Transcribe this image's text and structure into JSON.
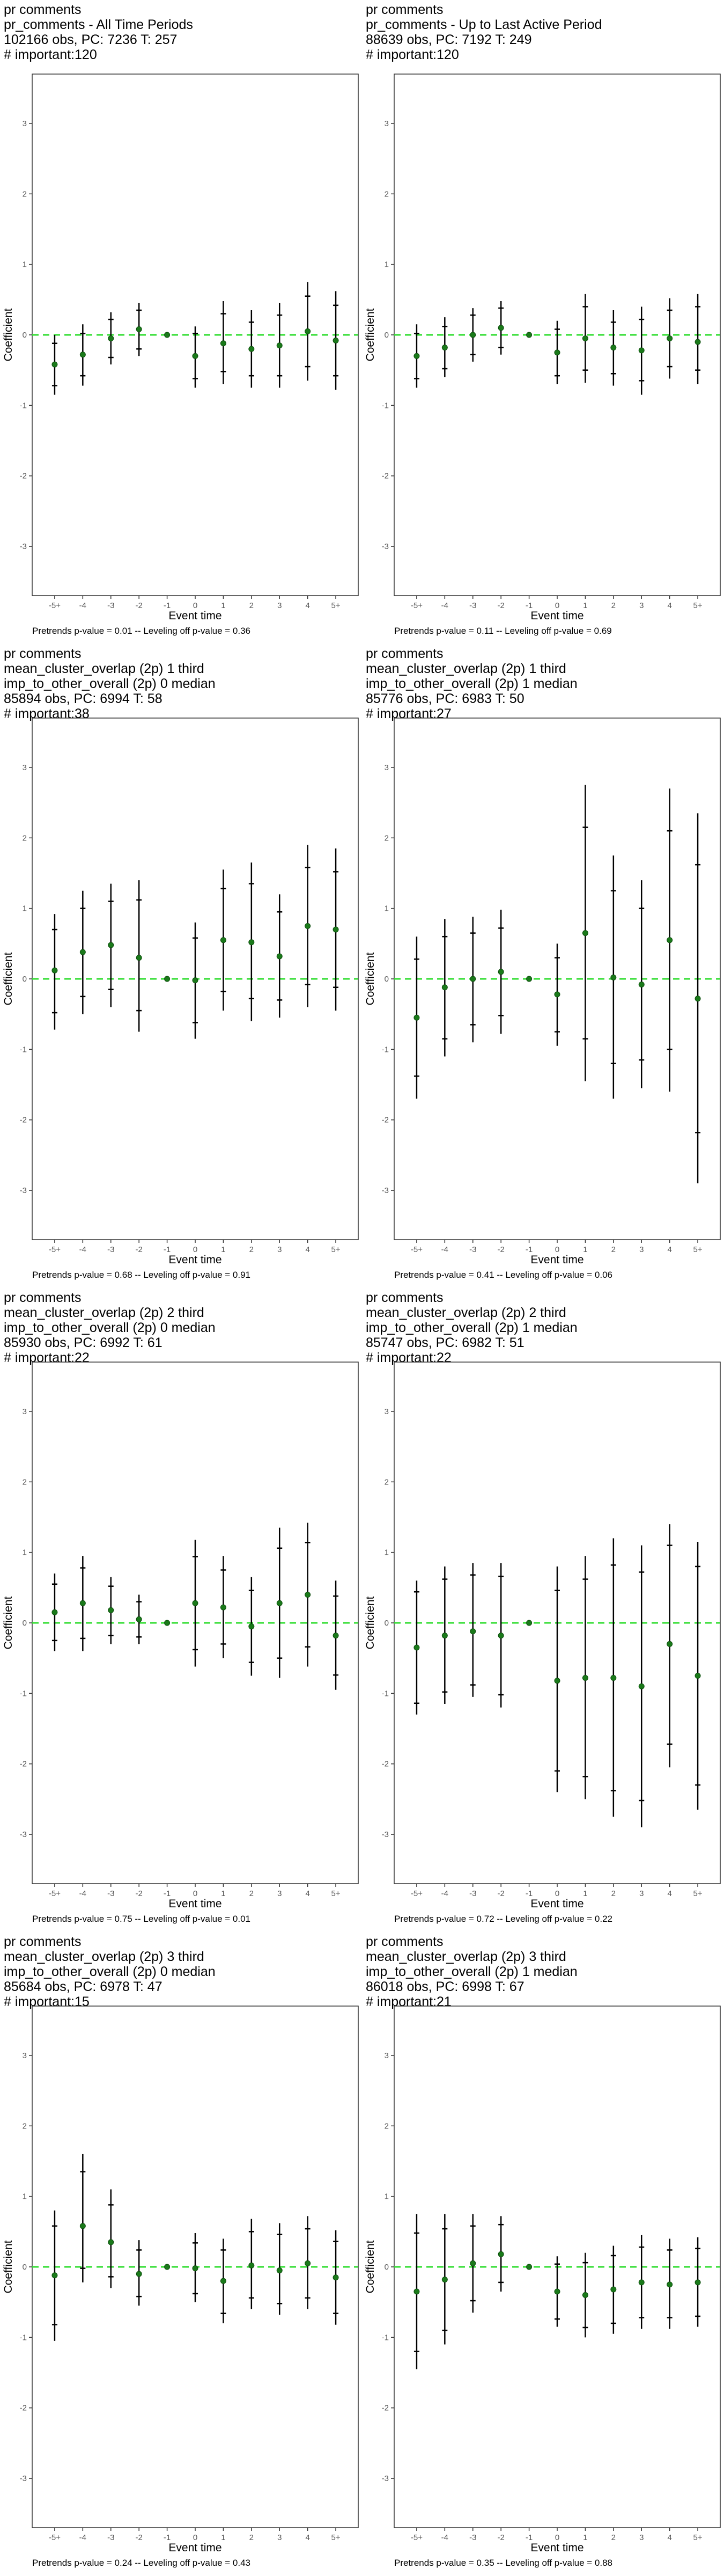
{
  "colors": {
    "zero_line": "#33dd33",
    "point": "#1a7a1a",
    "bar": "#000000",
    "frame": "#333333"
  },
  "chart_data": [
    {
      "type": "scatter",
      "title_lines": [
        "pr comments",
        "pr_comments - All Time Periods",
        "102166 obs, PC: 7236 T: 257",
        "# important:120"
      ],
      "footer": "Pretrends p-value = 0.01 -- Leveling off p-value = 0.36",
      "xlabel": "Event time",
      "ylabel": "Coefficient",
      "categories": [
        "-5+",
        "-4",
        "-3",
        "-2",
        "-1",
        "0",
        "1",
        "2",
        "3",
        "4",
        "5+"
      ],
      "yticks": [
        -3,
        -2,
        -1,
        0,
        1,
        2,
        3
      ],
      "ylim": [
        -3.7,
        3.7
      ],
      "points": [
        {
          "y": -0.42,
          "lo": -0.85,
          "hi": 0.0,
          "in_lo": -0.72,
          "in_hi": -0.12
        },
        {
          "y": -0.28,
          "lo": -0.72,
          "hi": 0.15,
          "in_lo": -0.58,
          "in_hi": 0.02
        },
        {
          "y": -0.05,
          "lo": -0.42,
          "hi": 0.32,
          "in_lo": -0.32,
          "in_hi": 0.22
        },
        {
          "y": 0.08,
          "lo": -0.3,
          "hi": 0.45,
          "in_lo": -0.2,
          "in_hi": 0.35
        },
        {
          "y": 0.0,
          "lo": 0.0,
          "hi": 0.0,
          "in_lo": 0.0,
          "in_hi": 0.0
        },
        {
          "y": -0.3,
          "lo": -0.75,
          "hi": 0.12,
          "in_lo": -0.62,
          "in_hi": 0.02
        },
        {
          "y": -0.12,
          "lo": -0.7,
          "hi": 0.48,
          "in_lo": -0.52,
          "in_hi": 0.3
        },
        {
          "y": -0.2,
          "lo": -0.75,
          "hi": 0.35,
          "in_lo": -0.58,
          "in_hi": 0.18
        },
        {
          "y": -0.15,
          "lo": -0.75,
          "hi": 0.45,
          "in_lo": -0.58,
          "in_hi": 0.28
        },
        {
          "y": 0.05,
          "lo": -0.65,
          "hi": 0.75,
          "in_lo": -0.45,
          "in_hi": 0.55
        },
        {
          "y": -0.08,
          "lo": -0.78,
          "hi": 0.62,
          "in_lo": -0.58,
          "in_hi": 0.42
        }
      ]
    },
    {
      "type": "scatter",
      "title_lines": [
        "pr comments",
        "pr_comments - Up to Last Active Period",
        "88639 obs, PC: 7192 T: 249",
        "# important:120"
      ],
      "footer": "Pretrends p-value = 0.11 -- Leveling off p-value = 0.69",
      "xlabel": "Event time",
      "ylabel": "Coefficient",
      "categories": [
        "-5+",
        "-4",
        "-3",
        "-2",
        "-1",
        "0",
        "1",
        "2",
        "3",
        "4",
        "5+"
      ],
      "yticks": [
        -3,
        -2,
        -1,
        0,
        1,
        2,
        3
      ],
      "ylim": [
        -3.7,
        3.7
      ],
      "points": [
        {
          "y": -0.3,
          "lo": -0.75,
          "hi": 0.15,
          "in_lo": -0.62,
          "in_hi": 0.02
        },
        {
          "y": -0.18,
          "lo": -0.6,
          "hi": 0.25,
          "in_lo": -0.48,
          "in_hi": 0.12
        },
        {
          "y": 0.0,
          "lo": -0.38,
          "hi": 0.38,
          "in_lo": -0.28,
          "in_hi": 0.28
        },
        {
          "y": 0.1,
          "lo": -0.28,
          "hi": 0.48,
          "in_lo": -0.18,
          "in_hi": 0.38
        },
        {
          "y": 0.0,
          "lo": 0.0,
          "hi": 0.0,
          "in_lo": 0.0,
          "in_hi": 0.0
        },
        {
          "y": -0.25,
          "lo": -0.7,
          "hi": 0.2,
          "in_lo": -0.58,
          "in_hi": 0.08
        },
        {
          "y": -0.05,
          "lo": -0.68,
          "hi": 0.58,
          "in_lo": -0.5,
          "in_hi": 0.4
        },
        {
          "y": -0.18,
          "lo": -0.72,
          "hi": 0.35,
          "in_lo": -0.55,
          "in_hi": 0.18
        },
        {
          "y": -0.22,
          "lo": -0.85,
          "hi": 0.4,
          "in_lo": -0.65,
          "in_hi": 0.22
        },
        {
          "y": -0.05,
          "lo": -0.62,
          "hi": 0.52,
          "in_lo": -0.45,
          "in_hi": 0.35
        },
        {
          "y": -0.1,
          "lo": -0.7,
          "hi": 0.58,
          "in_lo": -0.5,
          "in_hi": 0.4
        }
      ]
    },
    {
      "type": "scatter",
      "title_lines": [
        "pr comments",
        "mean_cluster_overlap (2p) 1 third",
        "imp_to_other_overall (2p) 0 median",
        "85894 obs, PC: 6994 T: 58",
        "# important:38"
      ],
      "footer": "Pretrends p-value = 0.68 -- Leveling off p-value = 0.91",
      "xlabel": "Event time",
      "ylabel": "Coefficient",
      "categories": [
        "-5+",
        "-4",
        "-3",
        "-2",
        "-1",
        "0",
        "1",
        "2",
        "3",
        "4",
        "5+"
      ],
      "yticks": [
        -3,
        -2,
        -1,
        0,
        1,
        2,
        3
      ],
      "ylim": [
        -3.7,
        3.7
      ],
      "points": [
        {
          "y": 0.12,
          "lo": -0.72,
          "hi": 0.92,
          "in_lo": -0.48,
          "in_hi": 0.7
        },
        {
          "y": 0.38,
          "lo": -0.5,
          "hi": 1.25,
          "in_lo": -0.25,
          "in_hi": 1.0
        },
        {
          "y": 0.48,
          "lo": -0.4,
          "hi": 1.35,
          "in_lo": -0.15,
          "in_hi": 1.1
        },
        {
          "y": 0.3,
          "lo": -0.75,
          "hi": 1.4,
          "in_lo": -0.45,
          "in_hi": 1.12
        },
        {
          "y": 0.0,
          "lo": 0.0,
          "hi": 0.0,
          "in_lo": 0.0,
          "in_hi": 0.0
        },
        {
          "y": -0.02,
          "lo": -0.85,
          "hi": 0.8,
          "in_lo": -0.62,
          "in_hi": 0.58
        },
        {
          "y": 0.55,
          "lo": -0.45,
          "hi": 1.55,
          "in_lo": -0.18,
          "in_hi": 1.28
        },
        {
          "y": 0.52,
          "lo": -0.6,
          "hi": 1.65,
          "in_lo": -0.28,
          "in_hi": 1.35
        },
        {
          "y": 0.32,
          "lo": -0.55,
          "hi": 1.2,
          "in_lo": -0.3,
          "in_hi": 0.95
        },
        {
          "y": 0.75,
          "lo": -0.4,
          "hi": 1.9,
          "in_lo": -0.08,
          "in_hi": 1.58
        },
        {
          "y": 0.7,
          "lo": -0.45,
          "hi": 1.85,
          "in_lo": -0.12,
          "in_hi": 1.52
        }
      ]
    },
    {
      "type": "scatter",
      "title_lines": [
        "pr comments",
        "mean_cluster_overlap (2p) 1 third",
        "imp_to_other_overall (2p) 1 median",
        "85776 obs, PC: 6983 T: 50",
        "# important:27"
      ],
      "footer": "Pretrends p-value = 0.41 -- Leveling off p-value = 0.06",
      "xlabel": "Event time",
      "ylabel": "Coefficient",
      "categories": [
        "-5+",
        "-4",
        "-3",
        "-2",
        "-1",
        "0",
        "1",
        "2",
        "3",
        "4",
        "5+"
      ],
      "yticks": [
        -3,
        -2,
        -1,
        0,
        1,
        2,
        3
      ],
      "ylim": [
        -3.7,
        3.7
      ],
      "points": [
        {
          "y": -0.55,
          "lo": -1.7,
          "hi": 0.6,
          "in_lo": -1.38,
          "in_hi": 0.28
        },
        {
          "y": -0.12,
          "lo": -1.1,
          "hi": 0.85,
          "in_lo": -0.85,
          "in_hi": 0.6
        },
        {
          "y": 0.0,
          "lo": -0.9,
          "hi": 0.88,
          "in_lo": -0.65,
          "in_hi": 0.65
        },
        {
          "y": 0.1,
          "lo": -0.78,
          "hi": 0.98,
          "in_lo": -0.52,
          "in_hi": 0.72
        },
        {
          "y": 0.0,
          "lo": 0.0,
          "hi": 0.0,
          "in_lo": 0.0,
          "in_hi": 0.0
        },
        {
          "y": -0.22,
          "lo": -0.95,
          "hi": 0.5,
          "in_lo": -0.75,
          "in_hi": 0.3
        },
        {
          "y": 0.65,
          "lo": -1.45,
          "hi": 2.75,
          "in_lo": -0.85,
          "in_hi": 2.15
        },
        {
          "y": 0.02,
          "lo": -1.7,
          "hi": 1.75,
          "in_lo": -1.2,
          "in_hi": 1.25
        },
        {
          "y": -0.08,
          "lo": -1.55,
          "hi": 1.4,
          "in_lo": -1.15,
          "in_hi": 1.0
        },
        {
          "y": 0.55,
          "lo": -1.6,
          "hi": 2.7,
          "in_lo": -1.0,
          "in_hi": 2.1
        },
        {
          "y": -0.28,
          "lo": -2.9,
          "hi": 2.35,
          "in_lo": -2.18,
          "in_hi": 1.62
        }
      ]
    },
    {
      "type": "scatter",
      "title_lines": [
        "pr comments",
        "mean_cluster_overlap (2p) 2 third",
        "imp_to_other_overall (2p) 0 median",
        "85930 obs, PC: 6992 T: 61",
        "# important:22"
      ],
      "footer": "Pretrends p-value = 0.75 -- Leveling off p-value = 0.01",
      "xlabel": "Event time",
      "ylabel": "Coefficient",
      "categories": [
        "-5+",
        "-4",
        "-3",
        "-2",
        "-1",
        "0",
        "1",
        "2",
        "3",
        "4",
        "5+"
      ],
      "yticks": [
        -3,
        -2,
        -1,
        0,
        1,
        2,
        3
      ],
      "ylim": [
        -3.7,
        3.7
      ],
      "points": [
        {
          "y": 0.15,
          "lo": -0.4,
          "hi": 0.7,
          "in_lo": -0.25,
          "in_hi": 0.55
        },
        {
          "y": 0.28,
          "lo": -0.4,
          "hi": 0.95,
          "in_lo": -0.22,
          "in_hi": 0.78
        },
        {
          "y": 0.18,
          "lo": -0.3,
          "hi": 0.65,
          "in_lo": -0.18,
          "in_hi": 0.52
        },
        {
          "y": 0.05,
          "lo": -0.3,
          "hi": 0.4,
          "in_lo": -0.2,
          "in_hi": 0.3
        },
        {
          "y": 0.0,
          "lo": 0.0,
          "hi": 0.0,
          "in_lo": 0.0,
          "in_hi": 0.0
        },
        {
          "y": 0.28,
          "lo": -0.62,
          "hi": 1.18,
          "in_lo": -0.38,
          "in_hi": 0.94
        },
        {
          "y": 0.22,
          "lo": -0.5,
          "hi": 0.95,
          "in_lo": -0.3,
          "in_hi": 0.75
        },
        {
          "y": -0.05,
          "lo": -0.75,
          "hi": 0.65,
          "in_lo": -0.56,
          "in_hi": 0.46
        },
        {
          "y": 0.28,
          "lo": -0.78,
          "hi": 1.35,
          "in_lo": -0.5,
          "in_hi": 1.06
        },
        {
          "y": 0.4,
          "lo": -0.62,
          "hi": 1.42,
          "in_lo": -0.34,
          "in_hi": 1.14
        },
        {
          "y": -0.18,
          "lo": -0.95,
          "hi": 0.6,
          "in_lo": -0.74,
          "in_hi": 0.38
        }
      ]
    },
    {
      "type": "scatter",
      "title_lines": [
        "pr comments",
        "mean_cluster_overlap (2p) 2 third",
        "imp_to_other_overall (2p) 1 median",
        "85747 obs, PC: 6982 T: 51",
        "# important:22"
      ],
      "footer": "Pretrends p-value = 0.72 -- Leveling off p-value = 0.22",
      "xlabel": "Event time",
      "ylabel": "Coefficient",
      "categories": [
        "-5+",
        "-4",
        "-3",
        "-2",
        "-1",
        "0",
        "1",
        "2",
        "3",
        "4",
        "5+"
      ],
      "yticks": [
        -3,
        -2,
        -1,
        0,
        1,
        2,
        3
      ],
      "ylim": [
        -3.7,
        3.7
      ],
      "points": [
        {
          "y": -0.35,
          "lo": -1.3,
          "hi": 0.6,
          "in_lo": -1.14,
          "in_hi": 0.44
        },
        {
          "y": -0.18,
          "lo": -1.15,
          "hi": 0.8,
          "in_lo": -0.98,
          "in_hi": 0.62
        },
        {
          "y": -0.12,
          "lo": -1.05,
          "hi": 0.85,
          "in_lo": -0.88,
          "in_hi": 0.68
        },
        {
          "y": -0.18,
          "lo": -1.2,
          "hi": 0.85,
          "in_lo": -1.02,
          "in_hi": 0.66
        },
        {
          "y": 0.0,
          "lo": 0.0,
          "hi": 0.0,
          "in_lo": 0.0,
          "in_hi": 0.0
        },
        {
          "y": -0.82,
          "lo": -2.4,
          "hi": 0.8,
          "in_lo": -2.1,
          "in_hi": 0.46
        },
        {
          "y": -0.78,
          "lo": -2.5,
          "hi": 0.95,
          "in_lo": -2.18,
          "in_hi": 0.62
        },
        {
          "y": -0.78,
          "lo": -2.75,
          "hi": 1.2,
          "in_lo": -2.38,
          "in_hi": 0.82
        },
        {
          "y": -0.9,
          "lo": -2.9,
          "hi": 1.1,
          "in_lo": -2.52,
          "in_hi": 0.72
        },
        {
          "y": -0.3,
          "lo": -2.05,
          "hi": 1.4,
          "in_lo": -1.72,
          "in_hi": 1.1
        },
        {
          "y": -0.75,
          "lo": -2.65,
          "hi": 1.15,
          "in_lo": -2.3,
          "in_hi": 0.8
        }
      ]
    },
    {
      "type": "scatter",
      "title_lines": [
        "pr comments",
        "mean_cluster_overlap (2p) 3 third",
        "imp_to_other_overall (2p) 0 median",
        "85684 obs, PC: 6978 T: 47",
        "# important:15"
      ],
      "footer": "Pretrends p-value = 0.24 -- Leveling off p-value = 0.43",
      "xlabel": "Event time",
      "ylabel": "Coefficient",
      "categories": [
        "-5+",
        "-4",
        "-3",
        "-2",
        "-1",
        "0",
        "1",
        "2",
        "3",
        "4",
        "5+"
      ],
      "yticks": [
        -3,
        -2,
        -1,
        0,
        1,
        2,
        3
      ],
      "ylim": [
        -3.7,
        3.7
      ],
      "points": [
        {
          "y": -0.12,
          "lo": -1.05,
          "hi": 0.8,
          "in_lo": -0.82,
          "in_hi": 0.58
        },
        {
          "y": 0.58,
          "lo": -0.22,
          "hi": 1.6,
          "in_lo": -0.02,
          "in_hi": 1.35
        },
        {
          "y": 0.35,
          "lo": -0.3,
          "hi": 1.1,
          "in_lo": -0.14,
          "in_hi": 0.88
        },
        {
          "y": -0.1,
          "lo": -0.55,
          "hi": 0.38,
          "in_lo": -0.42,
          "in_hi": 0.24
        },
        {
          "y": 0.0,
          "lo": 0.0,
          "hi": 0.0,
          "in_lo": 0.0,
          "in_hi": 0.0
        },
        {
          "y": -0.02,
          "lo": -0.5,
          "hi": 0.48,
          "in_lo": -0.38,
          "in_hi": 0.34
        },
        {
          "y": -0.2,
          "lo": -0.8,
          "hi": 0.4,
          "in_lo": -0.66,
          "in_hi": 0.24
        },
        {
          "y": 0.02,
          "lo": -0.6,
          "hi": 0.68,
          "in_lo": -0.44,
          "in_hi": 0.5
        },
        {
          "y": -0.05,
          "lo": -0.68,
          "hi": 0.62,
          "in_lo": -0.52,
          "in_hi": 0.46
        },
        {
          "y": 0.05,
          "lo": -0.6,
          "hi": 0.72,
          "in_lo": -0.44,
          "in_hi": 0.54
        },
        {
          "y": -0.15,
          "lo": -0.82,
          "hi": 0.52,
          "in_lo": -0.66,
          "in_hi": 0.36
        }
      ]
    },
    {
      "type": "scatter",
      "title_lines": [
        "pr comments",
        "mean_cluster_overlap (2p) 3 third",
        "imp_to_other_overall (2p) 1 median",
        "86018 obs, PC: 6998 T: 67",
        "# important:21"
      ],
      "footer": "Pretrends p-value = 0.35 -- Leveling off p-value = 0.88",
      "xlabel": "Event time",
      "ylabel": "Coefficient",
      "categories": [
        "-5+",
        "-4",
        "-3",
        "-2",
        "-1",
        "0",
        "1",
        "2",
        "3",
        "4",
        "5+"
      ],
      "yticks": [
        -3,
        -2,
        -1,
        0,
        1,
        2,
        3
      ],
      "ylim": [
        -3.7,
        3.7
      ],
      "points": [
        {
          "y": -0.35,
          "lo": -1.45,
          "hi": 0.75,
          "in_lo": -1.2,
          "in_hi": 0.48
        },
        {
          "y": -0.18,
          "lo": -1.1,
          "hi": 0.75,
          "in_lo": -0.9,
          "in_hi": 0.54
        },
        {
          "y": 0.05,
          "lo": -0.65,
          "hi": 0.75,
          "in_lo": -0.48,
          "in_hi": 0.58
        },
        {
          "y": 0.18,
          "lo": -0.35,
          "hi": 0.72,
          "in_lo": -0.22,
          "in_hi": 0.6
        },
        {
          "y": 0.0,
          "lo": 0.0,
          "hi": 0.0,
          "in_lo": 0.0,
          "in_hi": 0.0
        },
        {
          "y": -0.35,
          "lo": -0.85,
          "hi": 0.15,
          "in_lo": -0.74,
          "in_hi": 0.04
        },
        {
          "y": -0.4,
          "lo": -1.0,
          "hi": 0.2,
          "in_lo": -0.86,
          "in_hi": 0.06
        },
        {
          "y": -0.32,
          "lo": -0.95,
          "hi": 0.3,
          "in_lo": -0.8,
          "in_hi": 0.16
        },
        {
          "y": -0.22,
          "lo": -0.88,
          "hi": 0.45,
          "in_lo": -0.72,
          "in_hi": 0.28
        },
        {
          "y": -0.25,
          "lo": -0.88,
          "hi": 0.4,
          "in_lo": -0.72,
          "in_hi": 0.24
        },
        {
          "y": -0.22,
          "lo": -0.85,
          "hi": 0.42,
          "in_lo": -0.7,
          "in_hi": 0.26
        }
      ]
    }
  ]
}
